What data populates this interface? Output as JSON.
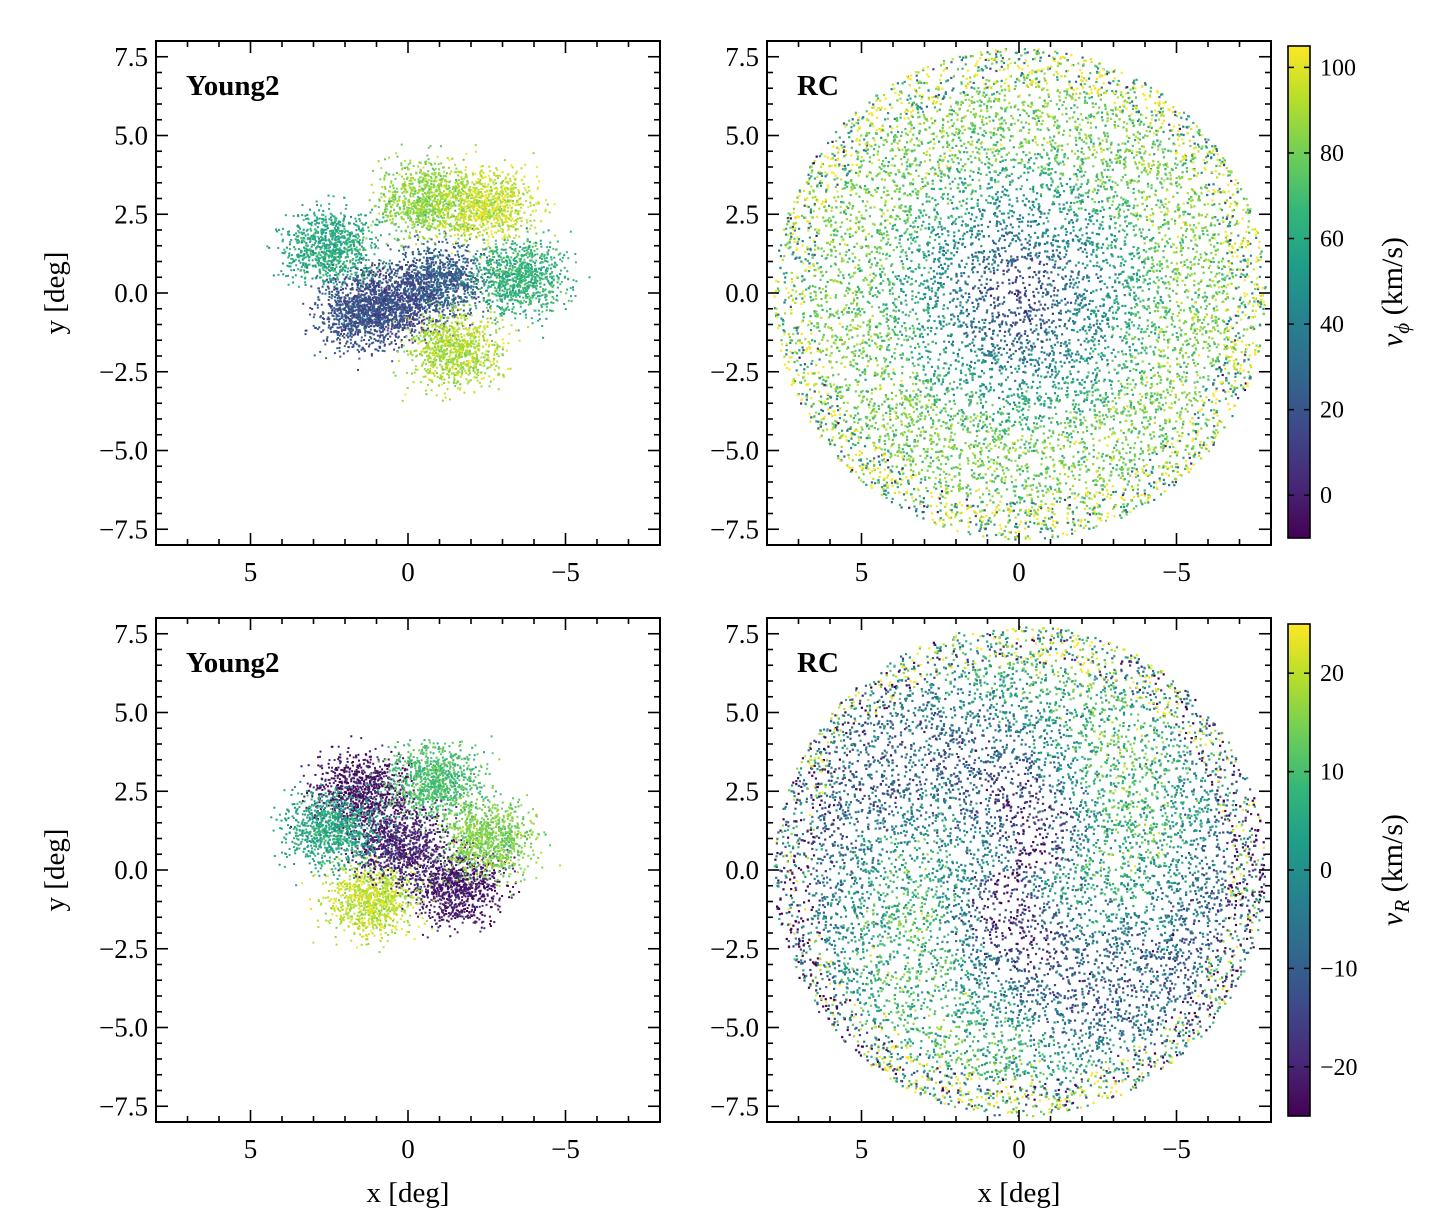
{
  "chart_data": [
    {
      "type": "scatter",
      "panel_label": "Young2",
      "color_quantity": "v_phi",
      "xlabel": "",
      "ylabel": "y [deg]",
      "xlim": [
        8,
        -8
      ],
      "ylim": [
        -8,
        8
      ],
      "x_ticks": [
        5,
        0,
        -5
      ],
      "y_ticks": [
        7.5,
        5.0,
        2.5,
        0.0,
        -2.5,
        -5.0,
        -7.5
      ],
      "x_tick_labels": [
        "5",
        "0",
        "−5"
      ],
      "y_tick_labels": [
        "7.5",
        "5.0",
        "2.5",
        "0.0",
        "−2.5",
        "−5.0",
        "−7.5"
      ],
      "regions": [
        {
          "x": -1.0,
          "y": 0.4,
          "value": 25
        },
        {
          "x": 0.5,
          "y": -0.2,
          "value": 15
        },
        {
          "x": -0.5,
          "y": 3.0,
          "value": 85
        },
        {
          "x": -2.5,
          "y": 2.8,
          "value": 95
        },
        {
          "x": -1.5,
          "y": -1.8,
          "value": 90
        },
        {
          "x": 2.5,
          "y": 1.5,
          "value": 60
        },
        {
          "x": -3.5,
          "y": 0.5,
          "value": 65
        },
        {
          "x": 1.5,
          "y": -0.6,
          "value": 20
        }
      ]
    },
    {
      "type": "scatter",
      "panel_label": "RC",
      "color_quantity": "v_phi",
      "xlabel": "",
      "ylabel": "",
      "xlim": [
        8,
        -8
      ],
      "ylim": [
        -8,
        8
      ],
      "x_ticks": [
        5,
        0,
        -5
      ],
      "y_ticks": [
        7.5,
        5.0,
        2.5,
        0.0,
        -2.5,
        -5.0,
        -7.5
      ],
      "x_tick_labels": [
        "5",
        "0",
        "−5"
      ],
      "y_tick_labels": [
        "7.5",
        "5.0",
        "2.5",
        "0.0",
        "−2.5",
        "−5.0",
        "−7.5"
      ],
      "disk_radius": 7.8,
      "center_value": 10,
      "outer_value": 80
    },
    {
      "type": "scatter",
      "panel_label": "Young2",
      "color_quantity": "v_R",
      "xlabel": "x [deg]",
      "ylabel": "y [deg]",
      "xlim": [
        8,
        -8
      ],
      "ylim": [
        -8,
        8
      ],
      "x_ticks": [
        5,
        0,
        -5
      ],
      "y_ticks": [
        7.5,
        5.0,
        2.5,
        0.0,
        -2.5,
        -5.0,
        -7.5
      ],
      "x_tick_labels": [
        "5",
        "0",
        "−5"
      ],
      "y_tick_labels": [
        "7.5",
        "5.0",
        "2.5",
        "0.0",
        "−2.5",
        "−5.0",
        "−7.5"
      ],
      "regions": [
        {
          "x": 1.5,
          "y": 2.5,
          "value": -22
        },
        {
          "x": -1.5,
          "y": -0.5,
          "value": -22
        },
        {
          "x": 1.2,
          "y": -0.9,
          "value": 20
        },
        {
          "x": -0.8,
          "y": 2.8,
          "value": 10
        },
        {
          "x": -2.5,
          "y": 1.0,
          "value": 15
        },
        {
          "x": 0.3,
          "y": 0.8,
          "value": -20
        },
        {
          "x": 2.5,
          "y": 1.3,
          "value": 5
        }
      ]
    },
    {
      "type": "scatter",
      "panel_label": "RC",
      "color_quantity": "v_R",
      "xlabel": "x [deg]",
      "ylabel": "",
      "xlim": [
        8,
        -8
      ],
      "ylim": [
        -8,
        8
      ],
      "x_ticks": [
        5,
        0,
        -5
      ],
      "y_ticks": [
        7.5,
        5.0,
        2.5,
        0.0,
        -2.5,
        -5.0,
        -7.5
      ],
      "x_tick_labels": [
        "5",
        "0",
        "−5"
      ],
      "y_tick_labels": [
        "7.5",
        "5.0",
        "2.5",
        "0.0",
        "−2.5",
        "−5.0",
        "−7.5"
      ],
      "disk_radius": 7.8,
      "center_value": -18,
      "outer_value": 0
    }
  ],
  "colorbars": [
    {
      "label_main": "v",
      "label_sub": "ϕ",
      "label_unit": " (km/s)",
      "vmin": -10,
      "vmax": 105,
      "ticks": [
        100,
        80,
        60,
        40,
        20,
        0
      ],
      "tick_labels": [
        "100",
        "80",
        "60",
        "40",
        "20",
        "0"
      ]
    },
    {
      "label_main": "v",
      "label_sub": "R",
      "label_unit": " (km/s)",
      "vmin": -25,
      "vmax": 25,
      "ticks": [
        20,
        10,
        0,
        -10,
        -20
      ],
      "tick_labels": [
        "20",
        "10",
        "0",
        "−10",
        "−20"
      ]
    }
  ],
  "colormap": "viridis",
  "colors": {
    "viridis": [
      "#440154",
      "#482878",
      "#3e4989",
      "#31688e",
      "#26828e",
      "#1f9e89",
      "#35b779",
      "#6ece58",
      "#b5de2b",
      "#fde725"
    ]
  }
}
